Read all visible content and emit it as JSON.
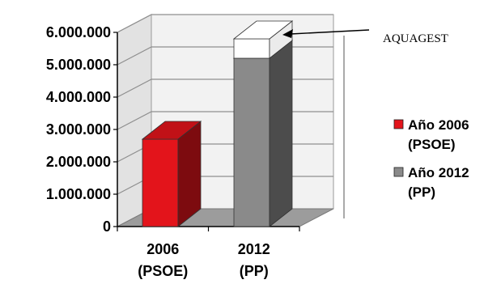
{
  "chart_data": {
    "type": "bar",
    "title": "",
    "xlabel": "",
    "ylabel": "",
    "ylim": [
      0,
      6000000
    ],
    "yticks": [
      0,
      1000000,
      2000000,
      3000000,
      4000000,
      5000000,
      6000000
    ],
    "ytick_labels": [
      "0",
      "1.000.000",
      "2.000.000",
      "3.000.000",
      "4.000.000",
      "5.000.000",
      "6.000.000"
    ],
    "categories": [
      {
        "line1": "2006",
        "line2": "(PSOE)"
      },
      {
        "line1": "2012",
        "line2": "(PP)"
      }
    ],
    "bars": [
      {
        "category_index": 0,
        "value": 2700000,
        "color": "#e3141b",
        "stack_top": null
      },
      {
        "category_index": 1,
        "value": 5200000,
        "color": "#8a8a8a",
        "stack_top": {
          "value": 600000,
          "color": "#ffffff"
        }
      }
    ],
    "annotation": {
      "text": "AQUAGEST",
      "points_to": "stack-top of 2012 bar"
    },
    "legend": {
      "placement": "right",
      "entries": [
        {
          "line1": "Año 2006",
          "line2": "(PSOE)",
          "color": "#e3141b"
        },
        {
          "line1": "Año 2012",
          "line2": "(PP)",
          "color": "#8a8a8a"
        }
      ]
    },
    "grid": true,
    "style": "3d"
  }
}
